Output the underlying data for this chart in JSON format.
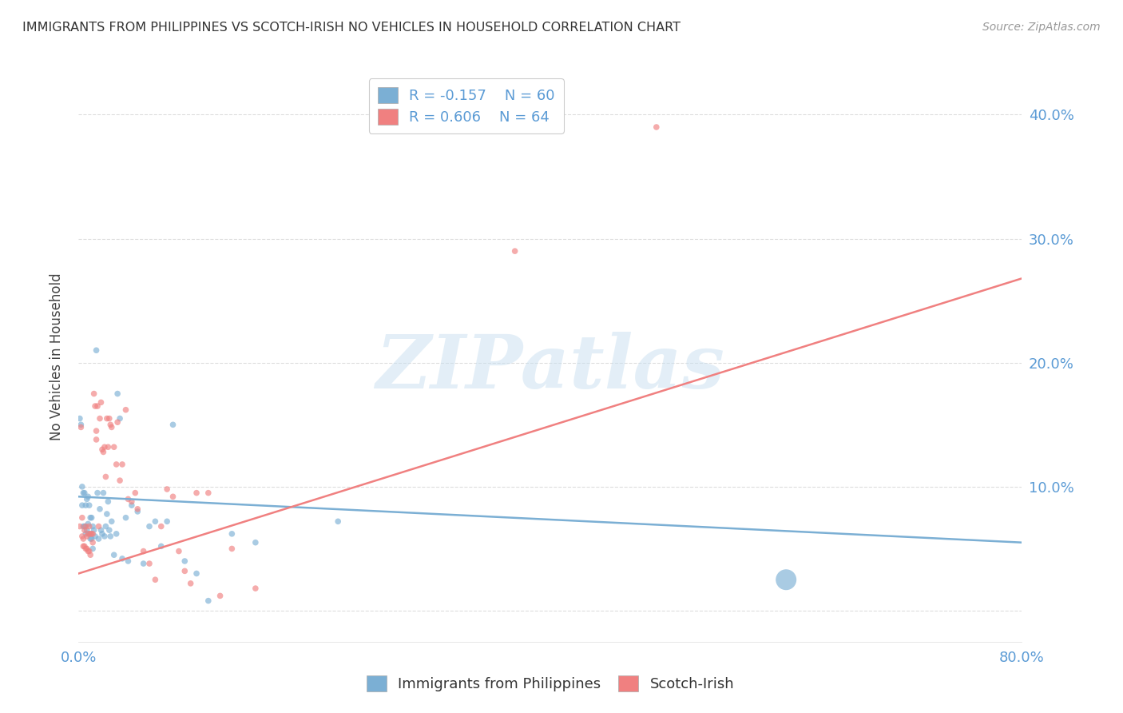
{
  "title": "IMMIGRANTS FROM PHILIPPINES VS SCOTCH-IRISH NO VEHICLES IN HOUSEHOLD CORRELATION CHART",
  "source": "Source: ZipAtlas.com",
  "ylabel": "No Vehicles in Household",
  "ytick_labels": [
    "",
    "10.0%",
    "20.0%",
    "30.0%",
    "40.0%"
  ],
  "ytick_positions": [
    0.0,
    0.1,
    0.2,
    0.3,
    0.4
  ],
  "xlim": [
    0.0,
    0.8
  ],
  "ylim": [
    -0.025,
    0.435
  ],
  "watermark_text": "ZIPatlas",
  "series": [
    {
      "name": "Immigrants from Philippines",
      "color": "#7BAFD4",
      "R": -0.157,
      "N": 60,
      "scatter_x": [
        0.001,
        0.002,
        0.003,
        0.003,
        0.004,
        0.004,
        0.005,
        0.005,
        0.006,
        0.006,
        0.007,
        0.007,
        0.008,
        0.008,
        0.009,
        0.009,
        0.01,
        0.01,
        0.011,
        0.011,
        0.012,
        0.012,
        0.013,
        0.014,
        0.015,
        0.016,
        0.017,
        0.018,
        0.019,
        0.02,
        0.021,
        0.022,
        0.023,
        0.024,
        0.025,
        0.026,
        0.027,
        0.028,
        0.03,
        0.032,
        0.033,
        0.035,
        0.037,
        0.04,
        0.042,
        0.045,
        0.05,
        0.055,
        0.06,
        0.065,
        0.07,
        0.075,
        0.08,
        0.09,
        0.1,
        0.11,
        0.13,
        0.15,
        0.22,
        0.6
      ],
      "scatter_y": [
        0.155,
        0.15,
        0.1,
        0.085,
        0.095,
        0.068,
        0.095,
        0.068,
        0.085,
        0.062,
        0.09,
        0.065,
        0.092,
        0.07,
        0.085,
        0.062,
        0.075,
        0.058,
        0.075,
        0.058,
        0.068,
        0.05,
        0.065,
        0.06,
        0.21,
        0.095,
        0.058,
        0.082,
        0.065,
        0.062,
        0.095,
        0.06,
        0.068,
        0.078,
        0.088,
        0.065,
        0.06,
        0.072,
        0.045,
        0.062,
        0.175,
        0.155,
        0.042,
        0.075,
        0.04,
        0.085,
        0.08,
        0.038,
        0.068,
        0.072,
        0.052,
        0.072,
        0.15,
        0.04,
        0.03,
        0.008,
        0.062,
        0.055,
        0.072,
        0.025
      ],
      "scatter_sizes": [
        30,
        30,
        30,
        30,
        30,
        30,
        30,
        30,
        30,
        30,
        30,
        30,
        30,
        30,
        30,
        30,
        30,
        30,
        30,
        30,
        30,
        30,
        30,
        30,
        30,
        30,
        30,
        30,
        30,
        30,
        30,
        30,
        30,
        30,
        30,
        30,
        30,
        30,
        30,
        30,
        30,
        30,
        30,
        30,
        30,
        30,
        30,
        30,
        30,
        30,
        30,
        30,
        30,
        30,
        30,
        30,
        30,
        30,
        30,
        350
      ],
      "line_x": [
        0.0,
        0.8
      ],
      "line_y": [
        0.092,
        0.055
      ]
    },
    {
      "name": "Scotch-Irish",
      "color": "#F08080",
      "R": 0.606,
      "N": 64,
      "scatter_x": [
        0.001,
        0.002,
        0.003,
        0.003,
        0.004,
        0.004,
        0.005,
        0.005,
        0.006,
        0.006,
        0.007,
        0.007,
        0.008,
        0.008,
        0.009,
        0.009,
        0.01,
        0.01,
        0.011,
        0.012,
        0.012,
        0.013,
        0.014,
        0.015,
        0.015,
        0.016,
        0.017,
        0.018,
        0.019,
        0.02,
        0.021,
        0.022,
        0.023,
        0.024,
        0.025,
        0.026,
        0.027,
        0.028,
        0.03,
        0.032,
        0.033,
        0.035,
        0.037,
        0.04,
        0.042,
        0.045,
        0.048,
        0.05,
        0.055,
        0.06,
        0.065,
        0.07,
        0.075,
        0.08,
        0.085,
        0.09,
        0.095,
        0.1,
        0.11,
        0.12,
        0.13,
        0.15,
        0.37,
        0.49
      ],
      "scatter_y": [
        0.068,
        0.148,
        0.075,
        0.06,
        0.058,
        0.052,
        0.065,
        0.052,
        0.068,
        0.05,
        0.06,
        0.05,
        0.062,
        0.048,
        0.068,
        0.048,
        0.062,
        0.045,
        0.062,
        0.062,
        0.055,
        0.175,
        0.165,
        0.145,
        0.138,
        0.165,
        0.068,
        0.155,
        0.168,
        0.13,
        0.128,
        0.132,
        0.108,
        0.155,
        0.132,
        0.155,
        0.15,
        0.148,
        0.132,
        0.118,
        0.152,
        0.105,
        0.118,
        0.162,
        0.09,
        0.088,
        0.095,
        0.082,
        0.048,
        0.038,
        0.025,
        0.068,
        0.098,
        0.092,
        0.048,
        0.032,
        0.022,
        0.095,
        0.095,
        0.012,
        0.05,
        0.018,
        0.29,
        0.39
      ],
      "scatter_sizes": [
        30,
        30,
        30,
        30,
        30,
        30,
        30,
        30,
        30,
        30,
        30,
        30,
        30,
        30,
        30,
        30,
        30,
        30,
        30,
        30,
        30,
        30,
        30,
        30,
        30,
        30,
        30,
        30,
        30,
        30,
        30,
        30,
        30,
        30,
        30,
        30,
        30,
        30,
        30,
        30,
        30,
        30,
        30,
        30,
        30,
        30,
        30,
        30,
        30,
        30,
        30,
        30,
        30,
        30,
        30,
        30,
        30,
        30,
        30,
        30,
        30,
        30,
        30,
        30
      ],
      "line_x": [
        0.0,
        0.8
      ],
      "line_y": [
        0.03,
        0.268
      ]
    }
  ],
  "legend_entries": [
    {
      "R_text": "R = -0.157",
      "N_text": "N = 60"
    },
    {
      "R_text": "R = 0.606",
      "N_text": "N = 64"
    }
  ],
  "grid_color": "#dddddd",
  "title_color": "#333333",
  "tick_color": "#5b9bd5",
  "ylabel_color": "#444444",
  "background_color": "#ffffff"
}
